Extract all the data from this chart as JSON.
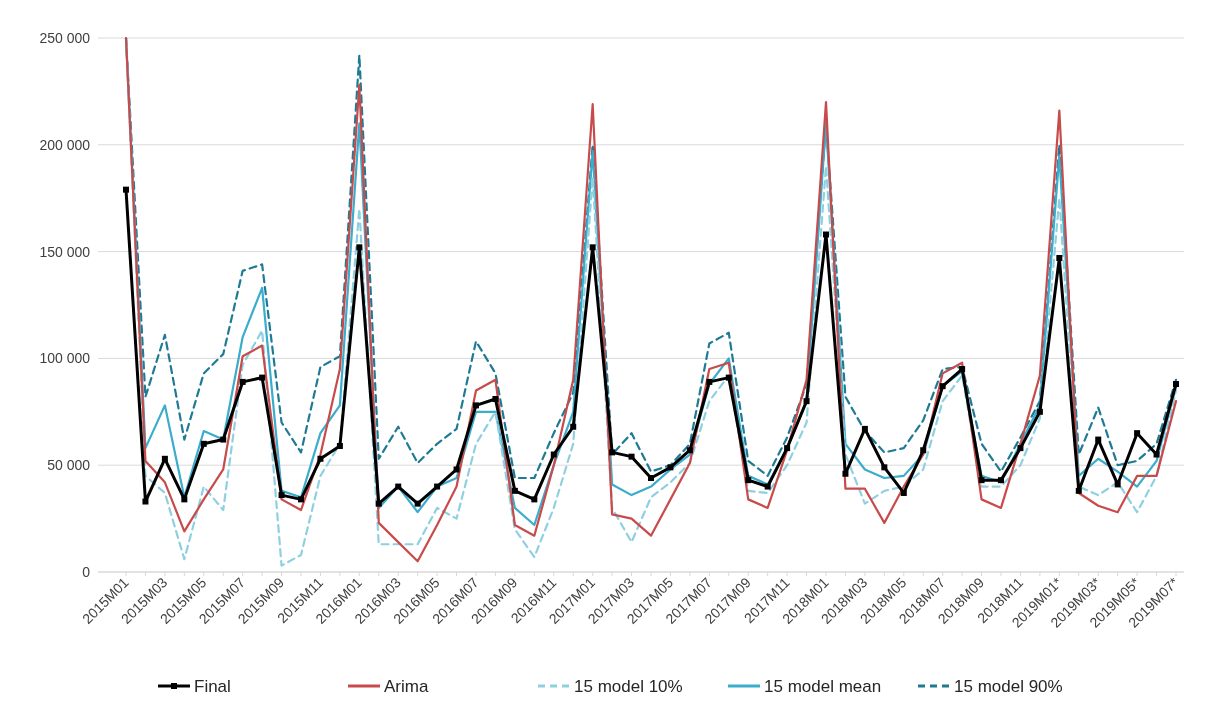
{
  "chart_data": {
    "type": "line",
    "categories": [
      "2015M01",
      null,
      "2015M03",
      null,
      "2015M05",
      null,
      "2015M07",
      null,
      "2015M09",
      null,
      "2015M11",
      null,
      "2016M01",
      null,
      "2016M03",
      null,
      "2016M05",
      null,
      "2016M07",
      null,
      "2016M09",
      null,
      "2016M11",
      null,
      "2017M01",
      null,
      "2017M03",
      null,
      "2017M05",
      null,
      "2017M07",
      null,
      "2017M09",
      null,
      "2017M11",
      null,
      "2018M01",
      null,
      "2018M03",
      null,
      "2018M05",
      null,
      "2018M07",
      null,
      "2018M09",
      null,
      "2018M11",
      null,
      "2019M01*",
      null,
      "2019M03*",
      null,
      "2019M05*",
      null,
      "2019M07*"
    ],
    "series": [
      {
        "name": "Final",
        "color": "#000000",
        "marker": "square",
        "line_style": "solid",
        "values": [
          179000,
          33000,
          53000,
          34000,
          60000,
          62000,
          89000,
          91000,
          36000,
          34000,
          53000,
          59000,
          152000,
          32000,
          40000,
          32000,
          40000,
          48000,
          78000,
          81000,
          38000,
          34000,
          55000,
          68000,
          152000,
          56000,
          54000,
          44000,
          49000,
          57000,
          89000,
          91000,
          43000,
          40000,
          58000,
          80000,
          158000,
          46000,
          67000,
          49000,
          37000,
          57000,
          87000,
          95000,
          43000,
          43000,
          58000,
          75000,
          147000,
          38000,
          62000,
          41000,
          65000,
          55000,
          88000
        ]
      },
      {
        "name": "Arima",
        "color": "#c84b4b",
        "line_style": "solid",
        "values": [
          250000,
          52000,
          42000,
          19000,
          34000,
          48000,
          101000,
          106000,
          34000,
          29000,
          55000,
          95000,
          228000,
          23000,
          14000,
          5000,
          22000,
          40000,
          85000,
          90000,
          22000,
          17000,
          50000,
          90000,
          219000,
          27000,
          25000,
          17000,
          34000,
          51000,
          95000,
          98000,
          34000,
          30000,
          57000,
          90000,
          220000,
          39000,
          39000,
          23000,
          40000,
          55000,
          93000,
          98000,
          34000,
          30000,
          60000,
          92000,
          216000,
          37000,
          31000,
          28000,
          45000,
          45000,
          80000
        ]
      },
      {
        "name": "15 model 10%",
        "color": "#8fd0e0",
        "line_style": "dashed",
        "values": [
          250000,
          45000,
          37000,
          6000,
          40000,
          29000,
          97000,
          113000,
          3000,
          8000,
          45000,
          60000,
          170000,
          13000,
          13000,
          13000,
          30000,
          25000,
          60000,
          75000,
          20000,
          7000,
          30000,
          60000,
          185000,
          30000,
          14000,
          35000,
          42000,
          51000,
          80000,
          92000,
          38000,
          37000,
          50000,
          70000,
          190000,
          55000,
          32000,
          38000,
          40000,
          48000,
          80000,
          92000,
          40000,
          40000,
          50000,
          72000,
          175000,
          40000,
          36000,
          42000,
          28000,
          45000,
          85000
        ]
      },
      {
        "name": "15 model mean",
        "color": "#3aaccc",
        "line_style": "solid",
        "values": [
          250000,
          58000,
          78000,
          35000,
          66000,
          62000,
          110000,
          133000,
          38000,
          35000,
          65000,
          78000,
          210000,
          30000,
          40000,
          28000,
          40000,
          44000,
          75000,
          75000,
          30000,
          22000,
          50000,
          75000,
          197000,
          41000,
          36000,
          40000,
          48000,
          55000,
          88000,
          100000,
          45000,
          41000,
          58000,
          80000,
          210000,
          60000,
          48000,
          44000,
          45000,
          55000,
          87000,
          94000,
          45000,
          42000,
          60000,
          78000,
          195000,
          45000,
          53000,
          47000,
          40000,
          52000,
          87000
        ]
      },
      {
        "name": "15 model 90%",
        "color": "#1f7a94",
        "line_style": "dashed",
        "values": [
          250000,
          82000,
          111000,
          62000,
          93000,
          102000,
          141000,
          144000,
          70000,
          56000,
          96000,
          101000,
          242000,
          53000,
          68000,
          51000,
          60000,
          67000,
          108000,
          93000,
          44000,
          44000,
          65000,
          84000,
          200000,
          55000,
          65000,
          47000,
          50000,
          60000,
          107000,
          112000,
          52000,
          45000,
          63000,
          88000,
          210000,
          82000,
          66000,
          56000,
          58000,
          71000,
          95000,
          96000,
          60000,
          47000,
          63000,
          80000,
          200000,
          55000,
          77000,
          50000,
          52000,
          60000,
          90000
        ]
      }
    ],
    "ylim": [
      0,
      250000
    ],
    "yticks": [
      {
        "value": 0,
        "label": "0"
      },
      {
        "value": 50000,
        "label": "50 000"
      },
      {
        "value": 100000,
        "label": "100 000"
      },
      {
        "value": 150000,
        "label": "150 000"
      },
      {
        "value": 200000,
        "label": "200 000"
      },
      {
        "value": 250000,
        "label": "250 000"
      }
    ],
    "grid": "y",
    "legend": "bottom"
  }
}
